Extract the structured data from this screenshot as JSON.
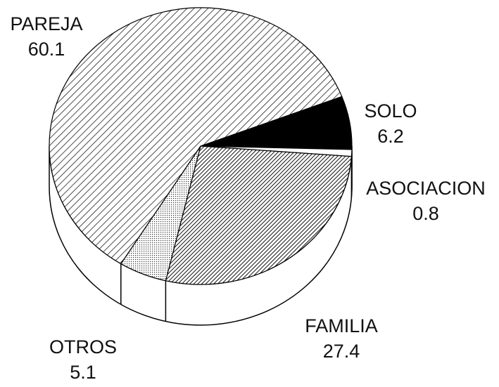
{
  "chart_data": {
    "type": "pie3d",
    "categories": [
      "SOLO",
      "ASOCIACION",
      "FAMILIA",
      "OTROS",
      "PAREJA"
    ],
    "values": [
      6.2,
      0.8,
      27.4,
      5.1,
      60.1
    ],
    "fills": [
      "solid-black",
      "plain-white",
      "hatch-dense",
      "dots",
      "hatch-light"
    ]
  }
}
